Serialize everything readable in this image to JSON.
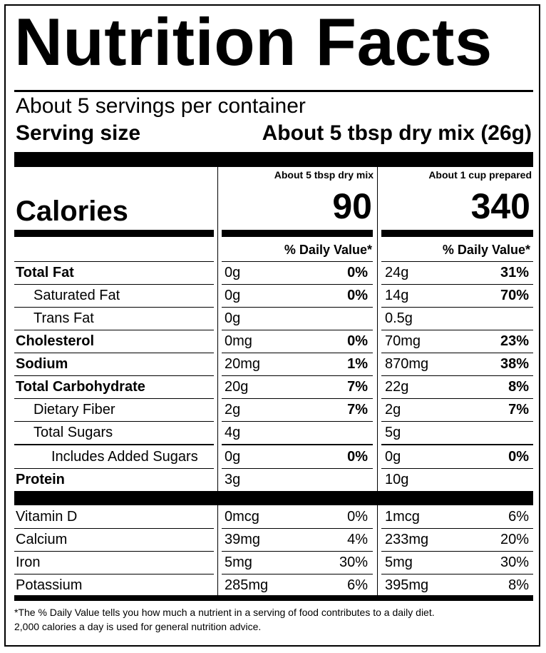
{
  "title": "Nutrition Facts",
  "servings_per_container": "About 5 servings per container",
  "serving_size_label": "Serving size",
  "serving_size_value": "About 5 tbsp dry mix (26g)",
  "calories_label": "Calories",
  "columns": [
    {
      "heading": "About 5 tbsp dry mix",
      "calories": "90",
      "dv_heading": "% Daily Value*"
    },
    {
      "heading": "About 1 cup prepared",
      "calories": "340",
      "dv_heading": "% Daily Value*"
    }
  ],
  "nutrients": [
    {
      "name": "Total Fat",
      "a1": "0g",
      "p1": "0%",
      "a2": "24g",
      "p2": "31%"
    },
    {
      "name": "Saturated Fat",
      "a1": "0g",
      "p1": "0%",
      "a2": "14g",
      "p2": "70%"
    },
    {
      "name": "Trans Fat",
      "a1": "0g",
      "p1": "",
      "a2": "0.5g",
      "p2": ""
    },
    {
      "name": "Cholesterol",
      "a1": "0mg",
      "p1": "0%",
      "a2": "70mg",
      "p2": "23%"
    },
    {
      "name": "Sodium",
      "a1": "20mg",
      "p1": "1%",
      "a2": "870mg",
      "p2": "38%"
    },
    {
      "name": "Total Carbohydrate",
      "a1": "20g",
      "p1": "7%",
      "a2": "22g",
      "p2": "8%"
    },
    {
      "name": "Dietary Fiber",
      "a1": "2g",
      "p1": "7%",
      "a2": "2g",
      "p2": "7%"
    },
    {
      "name": "Total Sugars",
      "a1": "4g",
      "p1": "",
      "a2": "5g",
      "p2": ""
    },
    {
      "name": "Includes Added Sugars",
      "a1": "0g",
      "p1": "0%",
      "a2": "0g",
      "p2": "0%"
    },
    {
      "name": "Protein",
      "a1": "3g",
      "p1": "",
      "a2": "10g",
      "p2": ""
    }
  ],
  "vitamins": [
    {
      "name": "Vitamin D",
      "a1": "0mcg",
      "p1": "0%",
      "a2": "1mcg",
      "p2": "6%"
    },
    {
      "name": "Calcium",
      "a1": "39mg",
      "p1": "4%",
      "a2": "233mg",
      "p2": "20%"
    },
    {
      "name": "Iron",
      "a1": "5mg",
      "p1": "30%",
      "a2": "5mg",
      "p2": "30%"
    },
    {
      "name": "Potassium",
      "a1": "285mg",
      "p1": "6%",
      "a2": "395mg",
      "p2": "8%"
    }
  ],
  "footnote_line1": "*The % Daily Value tells you how much a nutrient in a serving of food contributes to a daily diet.",
  "footnote_line2": "2,000 calories a day is used for general nutrition advice."
}
